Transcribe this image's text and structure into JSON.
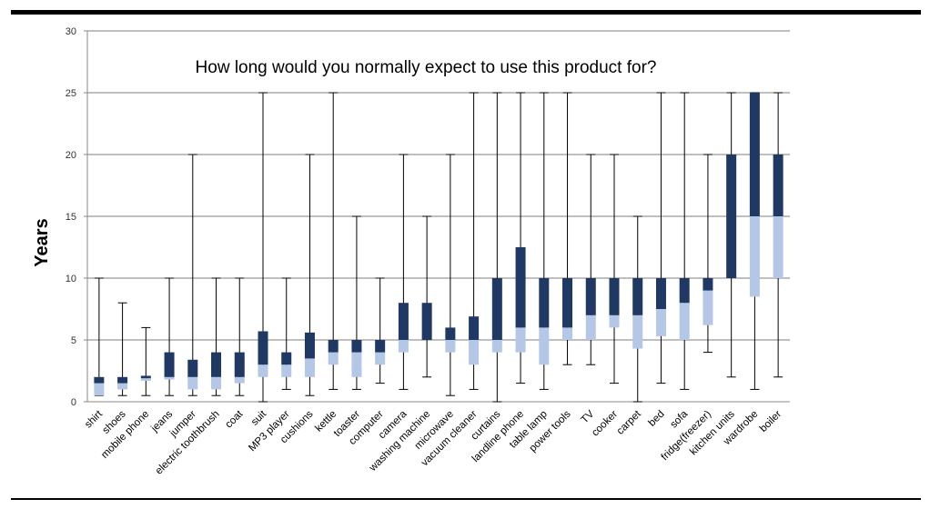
{
  "chart_data": {
    "type": "box",
    "title": "How long would you normally expect to use this product for?",
    "ylabel": "Years",
    "xlabel": "",
    "ylim": [
      0,
      30
    ],
    "yticks": [
      0,
      5,
      10,
      15,
      20,
      25,
      30
    ],
    "grid": true,
    "colors": {
      "upper_box": "#1f3864",
      "lower_box": "#b4c7e7",
      "whisker": "#000000",
      "grid": "#7f7f7f"
    },
    "categories": [
      "shirt",
      "shoes",
      "mobile phone",
      "jeans",
      "jumper",
      "electric toothbrush",
      "coat",
      "suit",
      "MP3 player",
      "cushions",
      "kettle",
      "toaster",
      "computer",
      "camera",
      "washing machine",
      "microwave",
      "vacuum cleaner",
      "curtains",
      "landline phone",
      "table lamp",
      "power tools",
      "TV",
      "cooker",
      "carpet",
      "bed",
      "sofa",
      "fridge(freezer)",
      "kitchen units",
      "wardrobe",
      "boiler"
    ],
    "min": [
      0.5,
      0.5,
      0.5,
      0.5,
      0.5,
      0.5,
      0.5,
      0,
      1,
      0.5,
      1,
      1,
      1.5,
      1,
      2,
      0.5,
      1,
      0,
      1.5,
      1,
      3,
      3,
      1.5,
      0,
      1.5,
      1,
      4,
      2,
      1,
      2
    ],
    "q1": [
      0.5,
      1,
      1.7,
      1.8,
      1,
      1,
      1.5,
      2,
      2,
      2,
      3,
      2,
      3,
      4,
      5,
      4,
      3,
      4,
      4,
      3,
      5,
      5,
      6,
      4.3,
      5.3,
      5,
      6.2,
      10,
      8.5,
      10
    ],
    "median": [
      1.5,
      1.5,
      1.9,
      2,
      2,
      2,
      2,
      3,
      3,
      3.5,
      4,
      4,
      4,
      5,
      5,
      5,
      5,
      5,
      6,
      6,
      6,
      7,
      7,
      7,
      7.5,
      8,
      9,
      10,
      15,
      15
    ],
    "q3": [
      2,
      2,
      2.1,
      4,
      3.4,
      4,
      4,
      5.7,
      4,
      5.6,
      5,
      5,
      5,
      8,
      8,
      6,
      6.9,
      10,
      12.5,
      10,
      10,
      10,
      10,
      10,
      10,
      10,
      10,
      20,
      25,
      20
    ],
    "max": [
      10,
      8,
      6,
      10,
      20,
      10,
      10,
      25,
      10,
      20,
      25,
      15,
      10,
      20,
      15,
      20,
      25,
      25,
      25,
      25,
      25,
      20,
      20,
      15,
      25,
      25,
      20,
      25,
      25,
      25
    ]
  }
}
